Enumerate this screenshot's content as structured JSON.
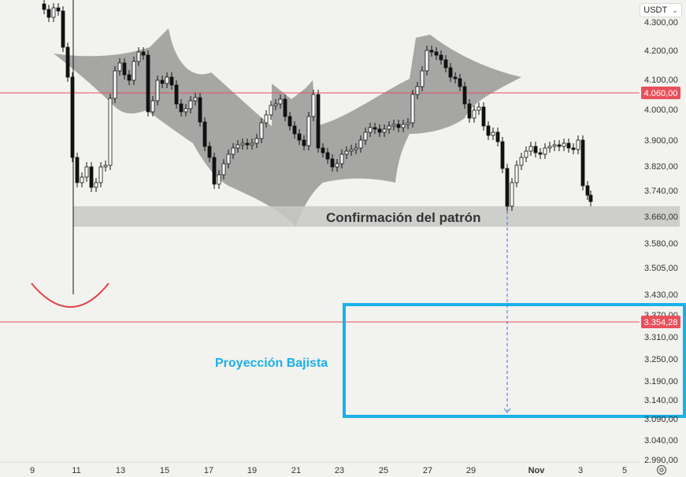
{
  "toolbar": {
    "unit_label": "USDT",
    "unit_icon": "chevron-down-icon",
    "settings_icon": "gear-icon"
  },
  "colors": {
    "background": "#f2f2ef",
    "candle": "#111111",
    "bat_pattern": "#8c8c8c",
    "band": "#c8c8c6",
    "level_line": "#e8505b",
    "projection": "#1ab0e8",
    "arc": "#e0404a"
  },
  "chart_data": {
    "type": "candlestick",
    "y_axis": {
      "ticks": [
        "4.300,00",
        "4.200,00",
        "4.100,00",
        "4.000,00",
        "3.900,00",
        "3.820,00",
        "3.740,00",
        "3.660,00",
        "3.580,00",
        "3.505,00",
        "3.430,00",
        "3.370,00",
        "3.310,00",
        "3.250,00",
        "3.190,00",
        "3.140,00",
        "3.090,00",
        "3.040,00",
        "2.990,00"
      ],
      "tick_values": [
        4300,
        4200,
        4100,
        4000,
        3900,
        3820,
        3740,
        3660,
        3580,
        3505,
        3430,
        3370,
        3310,
        3250,
        3190,
        3140,
        3090,
        3040,
        2990
      ]
    },
    "x_axis": {
      "ticks": [
        "9",
        "11",
        "13",
        "15",
        "17",
        "19",
        "21",
        "23",
        "25",
        "27",
        "29",
        "Nov",
        "3",
        "5"
      ]
    },
    "price_labels": [
      {
        "text": "4.060,00",
        "value": 4060
      },
      {
        "text": "3.354,28",
        "value": 3354.28
      }
    ],
    "annotations": {
      "confirmation_label": "Confirmación del patrón",
      "projection_label": "Proyección Bajista"
    },
    "grid": false
  }
}
